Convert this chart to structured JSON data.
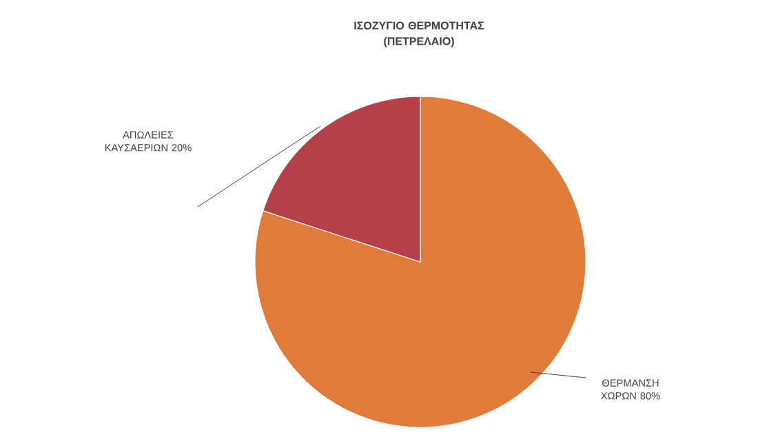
{
  "chart_data": {
    "type": "pie",
    "title": "ΙΣΟΖΥΓΙΟ ΘΕΡΜΟΤΗΤΑΣ (ΠΕΤΡΕΛΑΙΟ)",
    "categories": [
      "ΘΕΡΜΑΝΣΗ ΧΩΡΩΝ",
      "ΑΠΩΛΕΙΕΣ ΚΑΥΣΑΕΡΙΩΝ"
    ],
    "values": [
      80,
      20
    ],
    "colors": [
      "#e07b3a",
      "#b5404a"
    ],
    "value_labels": [
      "80%",
      "20%"
    ]
  }
}
